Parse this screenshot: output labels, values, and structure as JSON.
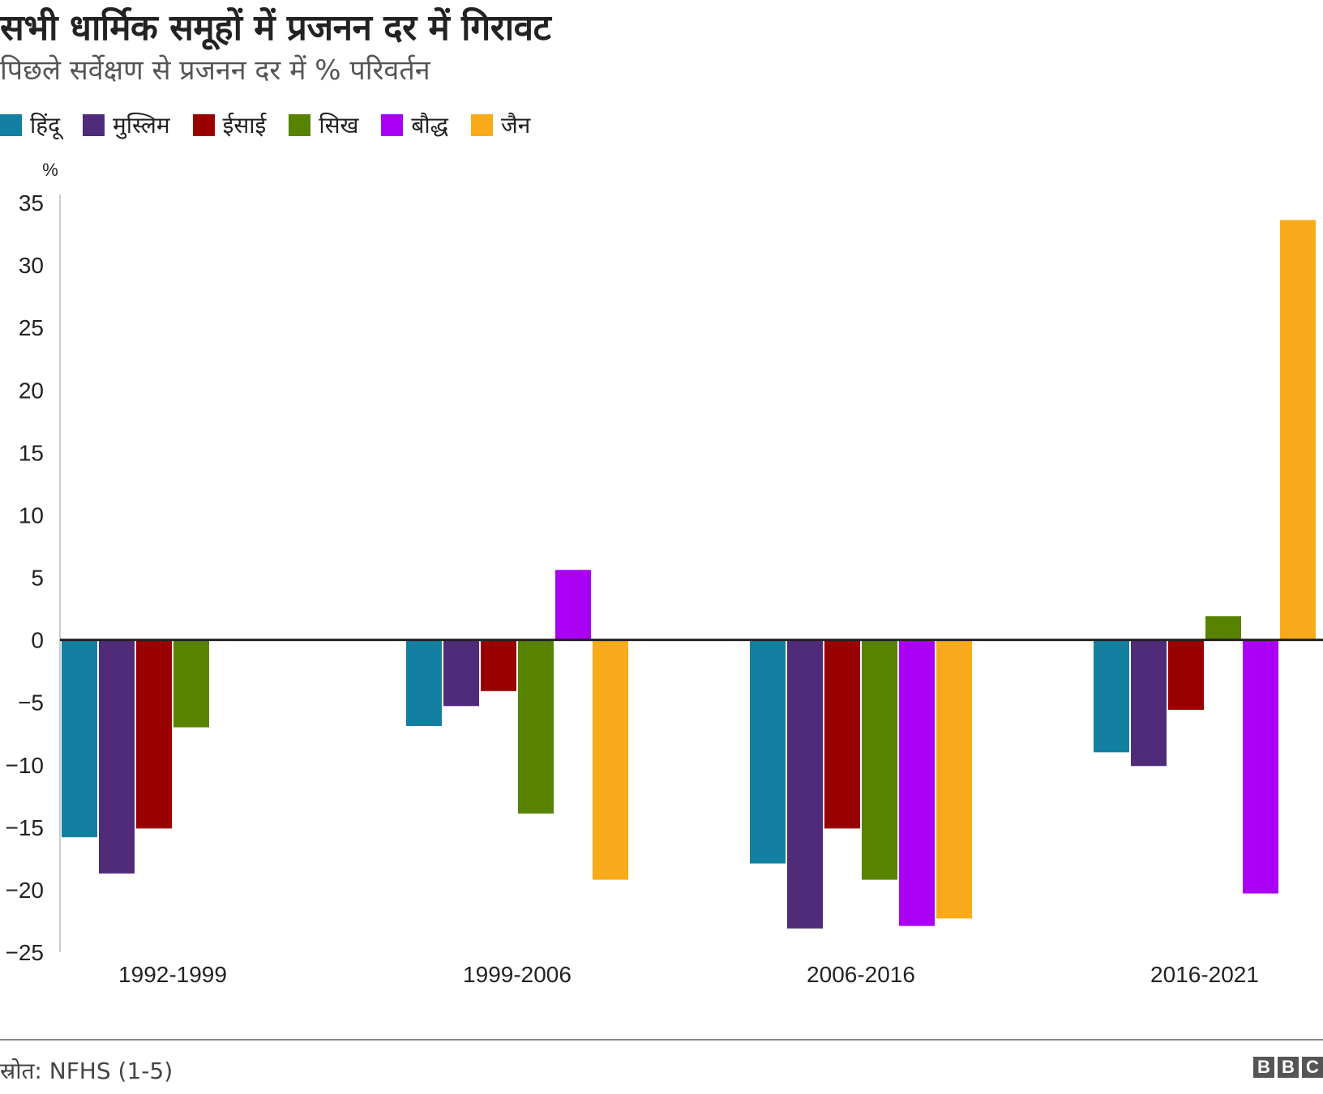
{
  "header": {
    "title": "सभी धार्मिक समूहों में प्रजनन दर में गिरावट",
    "subtitle": "पिछले सर्वेक्षण से प्रजनन दर में % परिवर्तन"
  },
  "footer": {
    "source": "स्रोत: NFHS (1-5)",
    "logo_letters": [
      "B",
      "B",
      "C"
    ]
  },
  "chart_data": {
    "type": "bar",
    "ylabel": "%",
    "ylim": [
      -25,
      35
    ],
    "yticks": [
      35,
      30,
      25,
      20,
      15,
      10,
      5,
      0,
      -5,
      -10,
      -15,
      -20,
      -25
    ],
    "grid": false,
    "legend_position": "top-left",
    "categories": [
      "1992-1999",
      "1999-2006",
      "2006-2016",
      "2016-2021"
    ],
    "series": [
      {
        "name": "हिंदू",
        "color": "#1380a1",
        "values": [
          -15.8,
          -6.9,
          -17.9,
          -9.0
        ]
      },
      {
        "name": "मुस्लिम",
        "color": "#4f2b7a",
        "values": [
          -18.7,
          -5.3,
          -23.1,
          -10.1
        ]
      },
      {
        "name": "ईसाई",
        "color": "#990000",
        "values": [
          -15.1,
          -4.1,
          -15.1,
          -5.6
        ]
      },
      {
        "name": "सिख",
        "color": "#588300",
        "values": [
          -7.0,
          -13.9,
          -19.2,
          1.9
        ]
      },
      {
        "name": "बौद्ध",
        "color": "#aa00f5",
        "values": [
          null,
          5.6,
          -22.9,
          -20.3
        ]
      },
      {
        "name": "जैन",
        "color": "#f9aa1b",
        "values": [
          null,
          -19.2,
          -22.3,
          33.6
        ]
      }
    ]
  }
}
